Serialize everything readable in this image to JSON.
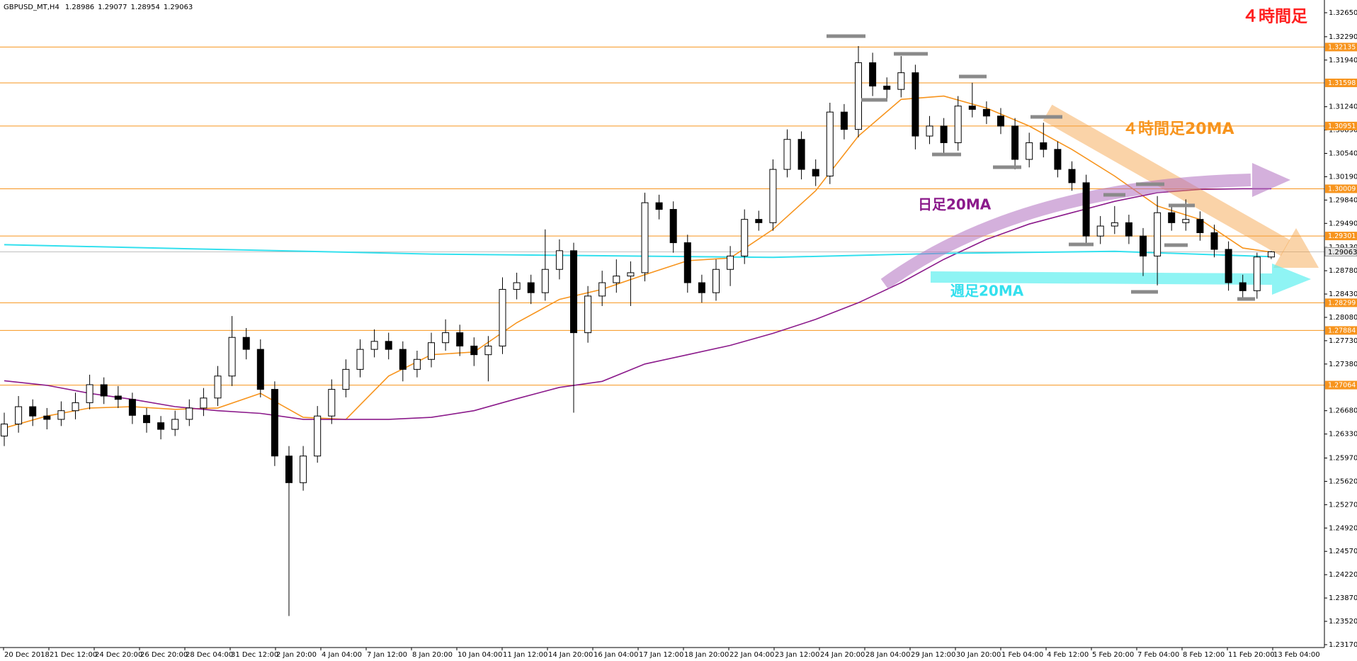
{
  "chart_data": {
    "type": "candlestick",
    "symbol": "GBPUSD_MT,H4",
    "up_color": "#ffffff",
    "down_color": "#000000",
    "ylim": [
      1.23127,
      1.32841
    ],
    "yticks": [
      {
        "value": 1.3265,
        "label": "1.32650"
      },
      {
        "value": 1.3229,
        "label": "1.32290"
      },
      {
        "value": 1.3194,
        "label": "1.31940"
      },
      {
        "value": 1.3124,
        "label": "1.31240"
      },
      {
        "value": 1.3089,
        "label": "1.30890"
      },
      {
        "value": 1.3054,
        "label": "1.30540"
      },
      {
        "value": 1.3019,
        "label": "1.30190"
      },
      {
        "value": 1.2984,
        "label": "1.29840"
      },
      {
        "value": 1.2949,
        "label": "1.29490"
      },
      {
        "value": 1.2913,
        "label": "1.29130"
      },
      {
        "value": 1.2878,
        "label": "1.28780"
      },
      {
        "value": 1.2843,
        "label": "1.28430"
      },
      {
        "value": 1.2808,
        "label": "1.28080"
      },
      {
        "value": 1.2773,
        "label": "1.27730"
      },
      {
        "value": 1.2738,
        "label": "1.27380"
      },
      {
        "value": 1.2668,
        "label": "1.26680"
      },
      {
        "value": 1.2633,
        "label": "1.26330"
      },
      {
        "value": 1.2597,
        "label": "1.25970"
      },
      {
        "value": 1.2562,
        "label": "1.25620"
      },
      {
        "value": 1.2527,
        "label": "1.25270"
      },
      {
        "value": 1.2492,
        "label": "1.24920"
      },
      {
        "value": 1.2457,
        "label": "1.24570"
      },
      {
        "value": 1.2422,
        "label": "1.24220"
      },
      {
        "value": 1.2387,
        "label": "1.23870"
      },
      {
        "value": 1.2352,
        "label": "1.23520"
      },
      {
        "value": 1.2317,
        "label": "1.23170"
      }
    ],
    "x_labels": [
      "20 Dec 2018",
      "21 Dec 12:00",
      "24 Dec 20:00",
      "26 Dec 20:00",
      "28 Dec 04:00",
      "31 Dec 12:00",
      "2 Jan 20:00",
      "4 Jan 04:00",
      "7 Jan 12:00",
      "8 Jan 20:00",
      "10 Jan 04:00",
      "11 Jan 12:00",
      "14 Jan 20:00",
      "16 Jan 04:00",
      "17 Jan 12:00",
      "18 Jan 20:00",
      "22 Jan 04:00",
      "23 Jan 12:00",
      "24 Jan 20:00",
      "28 Jan 04:00",
      "29 Jan 12:00",
      "30 Jan 20:00",
      "1 Feb 04:00",
      "4 Feb 12:00",
      "5 Feb 20:00",
      "7 Feb 04:00",
      "8 Feb 12:00",
      "11 Feb 20:00",
      "13 Feb 04:00"
    ],
    "levels": {
      "color": "#f7941d",
      "values": [
        1.32135,
        1.31598,
        1.30951,
        1.30009,
        1.29301,
        1.28299,
        1.27884,
        1.27064
      ]
    },
    "annotation": {
      "text": "４時間足",
      "color": "#ff2020"
    },
    "ohlc": [
      [
        1.263,
        1.2665,
        1.2615,
        1.2648
      ],
      [
        1.2648,
        1.269,
        1.2635,
        1.2674
      ],
      [
        1.2674,
        1.2685,
        1.2645,
        1.266
      ],
      [
        1.266,
        1.2672,
        1.264,
        1.2655
      ],
      [
        1.2655,
        1.2682,
        1.2645,
        1.2668
      ],
      [
        1.2668,
        1.2695,
        1.2655,
        1.268
      ],
      [
        1.268,
        1.2722,
        1.267,
        1.2707
      ],
      [
        1.2707,
        1.2718,
        1.2678,
        1.269
      ],
      [
        1.269,
        1.2705,
        1.2672,
        1.2685
      ],
      [
        1.2685,
        1.2695,
        1.2648,
        1.2661
      ],
      [
        1.2661,
        1.2672,
        1.2635,
        1.265
      ],
      [
        1.265,
        1.266,
        1.2625,
        1.264
      ],
      [
        1.264,
        1.2668,
        1.263,
        1.2655
      ],
      [
        1.2655,
        1.2685,
        1.2645,
        1.2672
      ],
      [
        1.2672,
        1.2702,
        1.266,
        1.2687
      ],
      [
        1.2687,
        1.2735,
        1.2675,
        1.272
      ],
      [
        1.272,
        1.281,
        1.2705,
        1.2778
      ],
      [
        1.2778,
        1.2792,
        1.2745,
        1.276
      ],
      [
        1.276,
        1.2775,
        1.2688,
        1.27
      ],
      [
        1.27,
        1.2712,
        1.2585,
        1.26
      ],
      [
        1.26,
        1.2615,
        1.236,
        1.256
      ],
      [
        1.256,
        1.2615,
        1.2548,
        1.26
      ],
      [
        1.26,
        1.2675,
        1.259,
        1.266
      ],
      [
        1.266,
        1.2715,
        1.2648,
        1.27
      ],
      [
        1.27,
        1.2745,
        1.2688,
        1.273
      ],
      [
        1.273,
        1.2775,
        1.2718,
        1.276
      ],
      [
        1.276,
        1.279,
        1.2748,
        1.2772
      ],
      [
        1.2772,
        1.2785,
        1.2745,
        1.276
      ],
      [
        1.276,
        1.2772,
        1.2712,
        1.273
      ],
      [
        1.273,
        1.2758,
        1.2718,
        1.2745
      ],
      [
        1.2745,
        1.2785,
        1.2733,
        1.277
      ],
      [
        1.277,
        1.2805,
        1.2758,
        1.2785
      ],
      [
        1.2785,
        1.2797,
        1.275,
        1.2765
      ],
      [
        1.2765,
        1.2778,
        1.2735,
        1.2752
      ],
      [
        1.2752,
        1.278,
        1.2712,
        1.2765
      ],
      [
        1.2765,
        1.2868,
        1.2753,
        1.285
      ],
      [
        1.285,
        1.2875,
        1.2835,
        1.286
      ],
      [
        1.286,
        1.2872,
        1.2828,
        1.2845
      ],
      [
        1.2845,
        1.294,
        1.2833,
        1.288
      ],
      [
        1.288,
        1.2925,
        1.2865,
        1.2908
      ],
      [
        1.2908,
        1.292,
        1.2665,
        1.2785
      ],
      [
        1.2785,
        1.2855,
        1.277,
        1.284
      ],
      [
        1.284,
        1.2878,
        1.2825,
        1.286
      ],
      [
        1.286,
        1.2895,
        1.2845,
        1.287
      ],
      [
        1.287,
        1.2892,
        1.2825,
        1.2875
      ],
      [
        1.2875,
        1.2995,
        1.2862,
        1.298
      ],
      [
        1.298,
        1.2992,
        1.2955,
        1.297
      ],
      [
        1.297,
        1.2982,
        1.2905,
        1.292
      ],
      [
        1.292,
        1.2932,
        1.2845,
        1.286
      ],
      [
        1.286,
        1.2872,
        1.283,
        1.2845
      ],
      [
        1.2845,
        1.2895,
        1.2833,
        1.288
      ],
      [
        1.288,
        1.2915,
        1.2855,
        1.29
      ],
      [
        1.29,
        1.297,
        1.2888,
        1.2955
      ],
      [
        1.2955,
        1.2968,
        1.2938,
        1.295
      ],
      [
        1.295,
        1.3045,
        1.2938,
        1.303
      ],
      [
        1.303,
        1.309,
        1.3018,
        1.3075
      ],
      [
        1.3075,
        1.3087,
        1.3015,
        1.303
      ],
      [
        1.303,
        1.3045,
        1.3005,
        1.302
      ],
      [
        1.302,
        1.313,
        1.3008,
        1.3116
      ],
      [
        1.3116,
        1.3128,
        1.3075,
        1.309
      ],
      [
        1.309,
        1.3215,
        1.3078,
        1.319
      ],
      [
        1.319,
        1.3205,
        1.314,
        1.3155
      ],
      [
        1.3155,
        1.3168,
        1.3135,
        1.315
      ],
      [
        1.315,
        1.32,
        1.3138,
        1.3175
      ],
      [
        1.3175,
        1.3187,
        1.306,
        1.308
      ],
      [
        1.308,
        1.311,
        1.3068,
        1.3095
      ],
      [
        1.3095,
        1.3107,
        1.3055,
        1.307
      ],
      [
        1.307,
        1.314,
        1.3058,
        1.3125
      ],
      [
        1.3125,
        1.316,
        1.3108,
        1.312
      ],
      [
        1.312,
        1.3132,
        1.3098,
        1.311
      ],
      [
        1.311,
        1.3122,
        1.3083,
        1.3095
      ],
      [
        1.3095,
        1.3107,
        1.303,
        1.3045
      ],
      [
        1.3045,
        1.3085,
        1.3033,
        1.307
      ],
      [
        1.307,
        1.31,
        1.3048,
        1.306
      ],
      [
        1.306,
        1.3072,
        1.3018,
        1.303
      ],
      [
        1.303,
        1.3042,
        1.2998,
        1.301
      ],
      [
        1.301,
        1.3022,
        1.2918,
        1.293
      ],
      [
        1.293,
        1.296,
        1.2918,
        1.2945
      ],
      [
        1.2945,
        1.2975,
        1.2933,
        1.295
      ],
      [
        1.295,
        1.2962,
        1.2918,
        1.293
      ],
      [
        1.293,
        1.2942,
        1.287,
        1.29
      ],
      [
        1.29,
        1.299,
        1.2856,
        1.2965
      ],
      [
        1.2965,
        1.2977,
        1.2938,
        1.295
      ],
      [
        1.295,
        1.2985,
        1.2938,
        1.2955
      ],
      [
        1.2955,
        1.2967,
        1.2923,
        1.2935
      ],
      [
        1.2935,
        1.2947,
        1.2898,
        1.291
      ],
      [
        1.291,
        1.2922,
        1.2848,
        1.286
      ],
      [
        1.286,
        1.2872,
        1.2836,
        1.2848
      ],
      [
        1.2848,
        1.2905,
        1.2836,
        1.28986
      ],
      [
        1.28986,
        1.29077,
        1.28954,
        1.29063
      ]
    ],
    "series": [
      {
        "name": "４時間足20MA",
        "color": "#f7941d",
        "x": [
          0,
          3,
          6,
          9,
          12,
          15,
          18,
          21,
          24,
          27,
          30,
          33,
          36,
          39,
          42,
          45,
          48,
          51,
          54,
          57,
          60,
          63,
          66,
          69,
          72,
          75,
          78,
          81,
          84,
          87,
          89
        ],
        "values": [
          1.2642,
          1.266,
          1.2672,
          1.2674,
          1.267,
          1.2672,
          1.2694,
          1.2658,
          1.2655,
          1.272,
          1.2752,
          1.2756,
          1.28,
          1.2835,
          1.285,
          1.2872,
          1.2893,
          1.2897,
          1.294,
          1.2998,
          1.308,
          1.3135,
          1.314,
          1.3122,
          1.3095,
          1.306,
          1.302,
          1.2975,
          1.2955,
          1.2912,
          1.2906
        ]
      },
      {
        "name": "日足20MA",
        "color": "#8b1a8b",
        "x": [
          0,
          3,
          6,
          9,
          12,
          15,
          18,
          21,
          24,
          27,
          30,
          33,
          36,
          39,
          42,
          45,
          48,
          51,
          54,
          57,
          60,
          63,
          66,
          69,
          72,
          75,
          78,
          81,
          84,
          87,
          89
        ],
        "values": [
          1.2713,
          1.2706,
          1.2694,
          1.2685,
          1.2674,
          1.2668,
          1.2664,
          1.2655,
          1.2655,
          1.2655,
          1.2658,
          1.2668,
          1.2686,
          1.2703,
          1.2712,
          1.2738,
          1.2752,
          1.2766,
          1.2784,
          1.2805,
          1.283,
          1.286,
          1.2895,
          1.2925,
          1.2948,
          1.2965,
          1.2982,
          1.2995,
          1.3,
          1.3001,
          1.3001
        ]
      },
      {
        "name": "週足20MA",
        "color": "#33e0ee",
        "x": [
          0,
          30,
          54,
          66,
          78,
          89
        ],
        "values": [
          1.2917,
          1.2903,
          1.2898,
          1.2904,
          1.2907,
          1.2899
        ]
      }
    ]
  }
}
